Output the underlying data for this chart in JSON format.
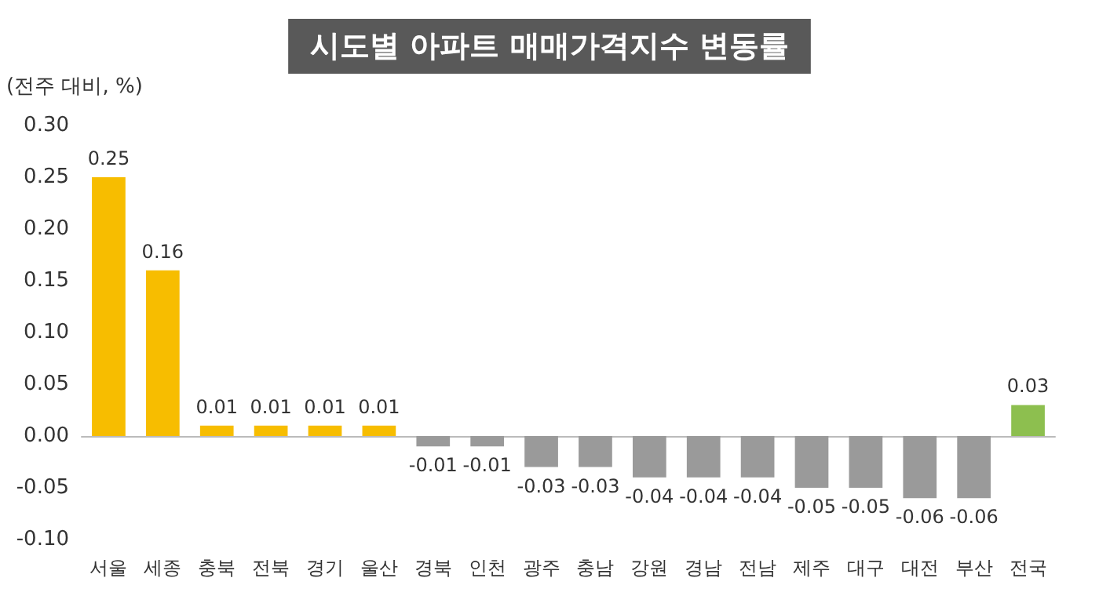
{
  "chart_data": {
    "type": "bar",
    "title": "시도별 아파트 매매가격지수 변동률",
    "ylabel": "(전주 대비, %)",
    "categories": [
      "서울",
      "세종",
      "충북",
      "전북",
      "경기",
      "울산",
      "경북",
      "인천",
      "광주",
      "충남",
      "강원",
      "경남",
      "전남",
      "제주",
      "대구",
      "대전",
      "부산",
      "전국"
    ],
    "values": [
      0.25,
      0.16,
      0.01,
      0.01,
      0.01,
      0.01,
      -0.01,
      -0.01,
      -0.03,
      -0.03,
      -0.04,
      -0.04,
      -0.04,
      -0.05,
      -0.05,
      -0.06,
      -0.06,
      0.03
    ],
    "colors": [
      "#f7bd00",
      "#f7bd00",
      "#f7bd00",
      "#f7bd00",
      "#f7bd00",
      "#f7bd00",
      "#9a9a9a",
      "#9a9a9a",
      "#9a9a9a",
      "#9a9a9a",
      "#9a9a9a",
      "#9a9a9a",
      "#9a9a9a",
      "#9a9a9a",
      "#9a9a9a",
      "#9a9a9a",
      "#9a9a9a",
      "#8dbf4f"
    ],
    "ylim": [
      -0.1,
      0.3
    ],
    "yticks": [
      {
        "value": -0.1,
        "label": "-0.10"
      },
      {
        "value": -0.05,
        "label": "-0.05"
      },
      {
        "value": 0,
        "label": "0.00"
      },
      {
        "value": 0.05,
        "label": "0.05"
      },
      {
        "value": 0.1,
        "label": "0.10"
      },
      {
        "value": 0.15,
        "label": "0.15"
      },
      {
        "value": 0.2,
        "label": "0.20"
      },
      {
        "value": 0.25,
        "label": "0.25"
      },
      {
        "value": 0.3,
        "label": "0.30"
      }
    ],
    "data_labels": true
  }
}
